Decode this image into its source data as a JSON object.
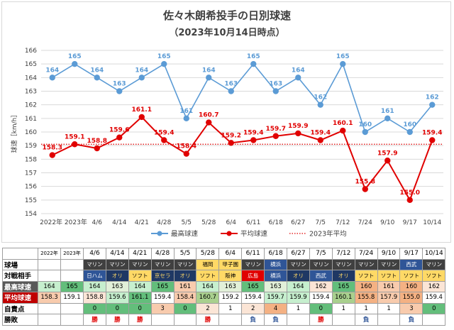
{
  "chart_data": {
    "type": "line",
    "title": "佐々木朗希投手の日別球速",
    "subtitle": "（2023年10月14日時点）",
    "ylabel": "球速［km/h］",
    "ylim": [
      154,
      166
    ],
    "y_ticks": [
      154,
      155,
      156,
      157,
      158,
      159,
      160,
      161,
      162,
      163,
      164,
      165,
      166
    ],
    "categories": [
      "2022年",
      "2023年",
      "4/6",
      "4/14",
      "4/21",
      "4/28",
      "5/5",
      "5/28",
      "6/4",
      "6/11",
      "6/18",
      "6/27",
      "7/5",
      "7/12",
      "7/24",
      "9/10",
      "9/17",
      "10/14"
    ],
    "x_tick_labels": [
      "2022年 2023年",
      "4/6",
      "4/14",
      "4/21",
      "4/28",
      "5/5",
      "5/28",
      "6/4",
      "6/11",
      "6/18",
      "6/27",
      "7/5",
      "7/12",
      "7/24",
      "9/10",
      "9/17",
      "10/14"
    ],
    "series": [
      {
        "name": "最高球速",
        "color": "#5b9bd5",
        "marker": "circle",
        "values": [
          164,
          165,
          164,
          163,
          164,
          165,
          161,
          164,
          163,
          165,
          163,
          164,
          162,
          165,
          160,
          161,
          160,
          162
        ]
      },
      {
        "name": "平均球速",
        "color": "#e00000",
        "marker": "circle",
        "values": [
          158.3,
          159.1,
          158.8,
          159.6,
          161.1,
          159.4,
          158.4,
          160.7,
          159.2,
          159.4,
          159.7,
          159.9,
          159.4,
          160.1,
          155.8,
          157.9,
          155.0,
          159.4
        ]
      }
    ],
    "reference_line": {
      "name": "2023年平均",
      "value": 159.1,
      "color": "#e00000",
      "style": "dotted"
    },
    "legend": [
      "最高球速",
      "平均球速",
      "2023年平均"
    ],
    "legend_position": "bottom",
    "grid": true
  },
  "table": {
    "header": [
      "球場",
      "2022年",
      "2023年",
      "4/6",
      "4/14",
      "4/21",
      "4/28",
      "5/5",
      "5/28",
      "6/4",
      "6/11",
      "6/18",
      "6/27",
      "7/5",
      "7/12",
      "7/24",
      "9/10",
      "9/17",
      "10/14"
    ],
    "rows": [
      {
        "label": "球場",
        "cells": [
          "",
          "",
          "マリン",
          "マリン",
          "マリン",
          "マリン",
          "マリン",
          "福岡",
          "甲子園",
          "マリン",
          "横浜",
          "マリン",
          "マリン",
          "マリン",
          "マリン",
          "マリン",
          "西武",
          "マリン"
        ]
      },
      {
        "label": "対戦相手",
        "cells": [
          "",
          "",
          "日ハム",
          "オリ",
          "ソフト",
          "京セラ",
          "オリ",
          "ソフト",
          "阪神",
          "広島",
          "横浜",
          "オリ",
          "西武",
          "オリ",
          "ソフト",
          "ソフト",
          "ソフト",
          "ソフト"
        ]
      },
      {
        "label": "最高球速",
        "cells": [
          "164",
          "165",
          "164",
          "163",
          "164",
          "165",
          "161",
          "164",
          "163",
          "165",
          "163",
          "164",
          "162",
          "165",
          "160",
          "161",
          "160",
          "162"
        ]
      },
      {
        "label": "平均球速",
        "cells": [
          "158.3",
          "159.1",
          "158.8",
          "159.6",
          "161.1",
          "159.4",
          "158.4",
          "160.7",
          "159.2",
          "159.4",
          "159.7",
          "159.9",
          "159.4",
          "160.1",
          "155.8",
          "157.9",
          "155.0",
          "159.4"
        ]
      },
      {
        "label": "自責点",
        "cells": [
          "",
          "",
          "0",
          "0",
          "0",
          "3",
          "0",
          "2",
          "1",
          "2",
          "4",
          "1",
          "0",
          "1",
          "1",
          "1",
          "3",
          "0"
        ]
      },
      {
        "label": "勝敗",
        "cells": [
          "",
          "",
          "勝",
          "勝",
          "勝",
          "",
          "",
          "勝",
          "",
          "負",
          "負",
          "",
          "勝",
          "",
          "負",
          "",
          "負",
          ""
        ]
      }
    ]
  },
  "colors": {
    "blue_series": "#5b9bd5",
    "red_series": "#e00000",
    "header_bg": "#ffffff",
    "venue_dark": "#333f4f",
    "venue_marine": "#404040",
    "green_cell": "#63be7b",
    "light_green_cell": "#c6efce",
    "pink_cell": "#f8cbad",
    "red_row_label": "#c00000",
    "gray_row_label": "#595959",
    "win_color": "#e00000",
    "loss_color": "#2f5597"
  }
}
